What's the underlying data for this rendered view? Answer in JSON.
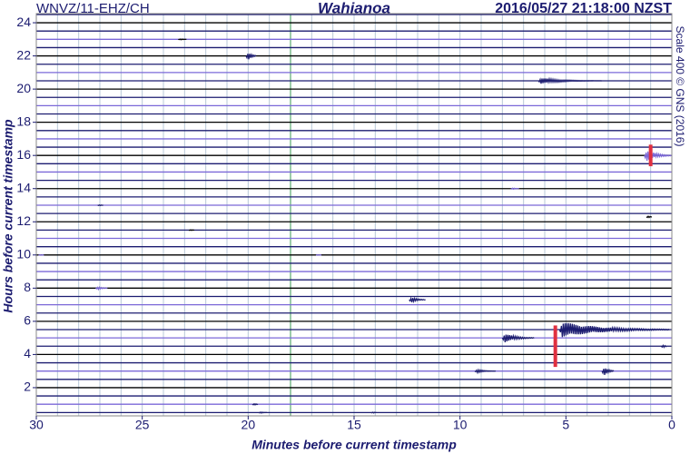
{
  "chart_data": {
    "type": "helicorder",
    "header_left": "WNVZ/11-EHZ/CH",
    "title": "Wahianoa",
    "header_right": "2016/05/27 21:18:00 NZST",
    "side_note": "Scale 400 © GNS (2016)",
    "xlabel": "Minutes before current timestamp",
    "ylabel": "Hours before current timestamp",
    "xlim": [
      30,
      0
    ],
    "xticks": [
      30,
      25,
      20,
      15,
      10,
      5,
      0
    ],
    "ylim": [
      0.3,
      24.55
    ],
    "yticks": [
      2,
      4,
      6,
      8,
      10,
      12,
      14,
      16,
      18,
      20,
      22,
      24
    ],
    "grid": true,
    "grid_color": "#b8c8d8",
    "highlight_x": 18,
    "highlight_color": "#5aaa70",
    "trace_interval": 0.5,
    "trace_colors": [
      "#1c1c70",
      "#000000",
      "#1c1c70",
      "#7b68d8"
    ],
    "events": [
      {
        "minute": 20.1,
        "hour": 22,
        "amplitude": 0.9,
        "duration": 0.5,
        "color": "#1c1c70"
      },
      {
        "minute": 6.3,
        "hour": 20.5,
        "amplitude": 0.4,
        "duration": 3,
        "color": "#1c1c70"
      },
      {
        "minute": 23.3,
        "hour": 23,
        "amplitude": 0.15,
        "duration": 0.4,
        "color": "#000000"
      },
      {
        "minute": 1.3,
        "hour": 16,
        "amplitude": 0.9,
        "duration": 1.3,
        "color": "#7b68d8"
      },
      {
        "minute": 1.0,
        "hour": 16,
        "amplitude": 1.3,
        "duration": 0,
        "color": "#e03040"
      },
      {
        "minute": 7.6,
        "hour": 14,
        "amplitude": 0.2,
        "duration": 0.4,
        "color": "#7b68d8"
      },
      {
        "minute": 1.2,
        "hour": 12.3,
        "amplitude": 0.4,
        "duration": 0.2,
        "color": "#000000"
      },
      {
        "minute": 27.1,
        "hour": 13,
        "amplitude": 0.15,
        "duration": 0.3,
        "color": "#1c1c70"
      },
      {
        "minute": 22.8,
        "hour": 11.5,
        "amplitude": 0.15,
        "duration": 0.3,
        "color": "#000000"
      },
      {
        "minute": 29.9,
        "hour": 10,
        "amplitude": 0.1,
        "duration": 0.3,
        "color": "#7b68d8"
      },
      {
        "minute": 16.8,
        "hour": 10,
        "amplitude": 0.1,
        "duration": 0.3,
        "color": "#7b68d8"
      },
      {
        "minute": 27.2,
        "hour": 8,
        "amplitude": 0.3,
        "duration": 0.6,
        "color": "#7b68d8"
      },
      {
        "minute": 12.4,
        "hour": 7.3,
        "amplitude": 0.5,
        "duration": 0.8,
        "color": "#1c1c70"
      },
      {
        "minute": 5.3,
        "hour": 5.5,
        "amplitude": 1.0,
        "duration": 5.2,
        "color": "#1c1c70"
      },
      {
        "minute": 5.5,
        "hour": 4.5,
        "amplitude": 2.5,
        "duration": 0,
        "color": "#e03040"
      },
      {
        "minute": 8.0,
        "hour": 5,
        "amplitude": 0.7,
        "duration": 1.5,
        "color": "#1c1c70"
      },
      {
        "minute": 3.3,
        "hour": 3,
        "amplitude": 0.9,
        "duration": 0.6,
        "color": "#1c1c70"
      },
      {
        "minute": 9.3,
        "hour": 3,
        "amplitude": 0.3,
        "duration": 1,
        "color": "#1c1c70"
      },
      {
        "minute": 0.5,
        "hour": 4.5,
        "amplitude": 0.5,
        "duration": 0.3,
        "color": "#1c1c70"
      },
      {
        "minute": 19.8,
        "hour": 1,
        "amplitude": 0.3,
        "duration": 0.3,
        "color": "#1c1c70"
      },
      {
        "minute": 19.5,
        "hour": 0.5,
        "amplitude": 0.2,
        "duration": 0.4,
        "color": "#1c1c70"
      },
      {
        "minute": 14.2,
        "hour": 0.5,
        "amplitude": 0.2,
        "duration": 0.3,
        "color": "#1c1c70"
      }
    ]
  }
}
